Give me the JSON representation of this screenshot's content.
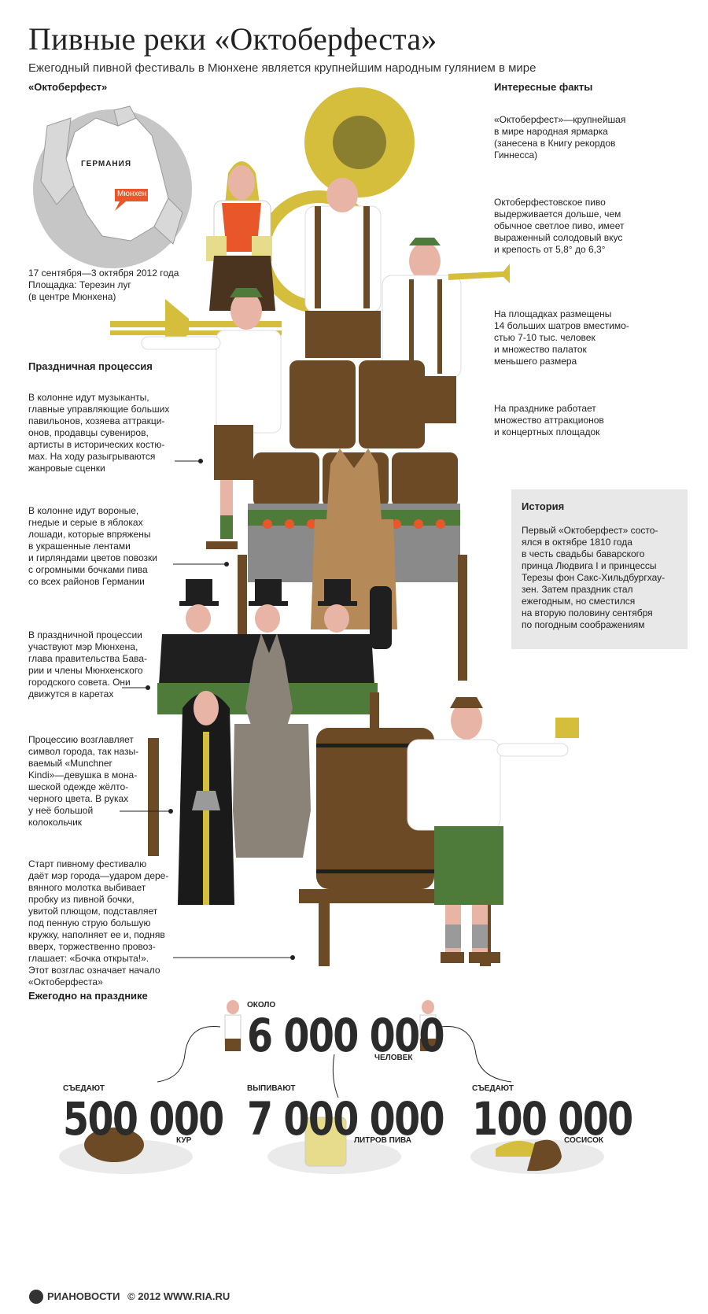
{
  "header": {
    "title": "Пивные реки «Октоберфеста»",
    "subtitle": "Ежегодный пивной фестиваль в Мюнхене является крупнейшим народным гулянием в мире"
  },
  "map": {
    "heading": "«Октоберфест»",
    "country_label": "ГЕРМАНИЯ",
    "city_label": "Мюнхен",
    "dates": "17 сентября—3 октября 2012 года\nПлощадка: Терезин луг\n(в центре Мюнхена)"
  },
  "procession": {
    "heading": "Праздничная процессия",
    "items": [
      "В колонне идут музыканты,\nглавные управляющие больших\nпавильонов, хозяева аттракци-\nонов, продавцы сувениров,\nартисты в исторических костю-\nмах. На ходу разыгрываются\nжанровые сценки",
      "В колонне идут вороные,\nгнедые и серые в яблоках\nлошади, которые впряжены\nв украшенные лентами\nи гирляндами цветов повозки\nс огромными бочками пива\nсо всех районов Германии",
      "В праздничной процессии\nучаствуют мэр Мюнхена,\nглава правительства Бава-\nрии и члены Мюнхенского\nгородского совета. Они\nдвижутся в каретах",
      "Процессию возглавляет\nсимвол города, так назы-\nваемый «Munchner\nKindi»—девушка в мона-\nшеской одежде жёлто-\nчерного цвета. В руках\nу неё большой\nколокольчик",
      "Старт пивному фестивалю\nдаёт мэр города—ударом дере-\nвянного молотка выбивает\nпробку из пивной бочки,\nувитой плющом, подставляет\nпод пенную струю большую\nкружку, наполняет ее и, подняв\nвверх, торжественно провоз-\nглашает: «Бочка открыта!».\nЭтот возглас означает начало\n«Октоберфеста»"
    ]
  },
  "facts": {
    "heading": "Интересные факты",
    "items": [
      "«Октоберфест»—крупнейшая\nв мире народная ярмарка\n(занесена в Книгу рекордов\nГиннесса)",
      "Октоберфестовское пиво\nвыдерживается дольше, чем\nобычное светлое пиво, имеет\nвыраженный солодовый вкус\nи крепость от 5,8° до 6,3°",
      "На площадках размещены\n14 больших шатров вместимо-\nстью 7-10 тыс. человек\nи множество палаток\nменьшего размера",
      "На празднике работает\nмножество аттракционов\nи концертных площадок"
    ]
  },
  "history": {
    "heading": "История",
    "text": "Первый «Октоберфест» состо-\nялся в октябре 1810 года\nв честь свадьбы баварского\nпринца Людвига I и принцессы\nТерезы фон Сакс-Хильдбургхау-\nзен. Затем праздник стал\nежегодным, но сместился\nна вторую половину сентября\nпо погодным соображениям"
  },
  "annual": {
    "heading": "Ежегодно на празднике",
    "people": {
      "pre": "ОКОЛО",
      "value": "6 000 000",
      "unit": "ЧЕЛОВЕК"
    },
    "chicken": {
      "pre": "СЪЕДАЮТ",
      "value": "500 000",
      "unit": "КУР"
    },
    "beer": {
      "pre": "ВЫПИВАЮТ",
      "value": "7 000 000",
      "unit": "ЛИТРОВ ПИВА"
    },
    "sausage": {
      "pre": "СЪЕДАЮТ",
      "value": "100 000",
      "unit": "СОСИСОК"
    }
  },
  "footer": {
    "brand": "РИАНОВОСТИ",
    "copyright": "© 2012 WWW.RIA.RU"
  },
  "colors": {
    "mustard": "#d4be3c",
    "brown": "#6b4a25",
    "skin": "#e8b4a6",
    "gray": "#8a8a8a",
    "green": "#4e7a3a",
    "orange": "#e8562a"
  }
}
